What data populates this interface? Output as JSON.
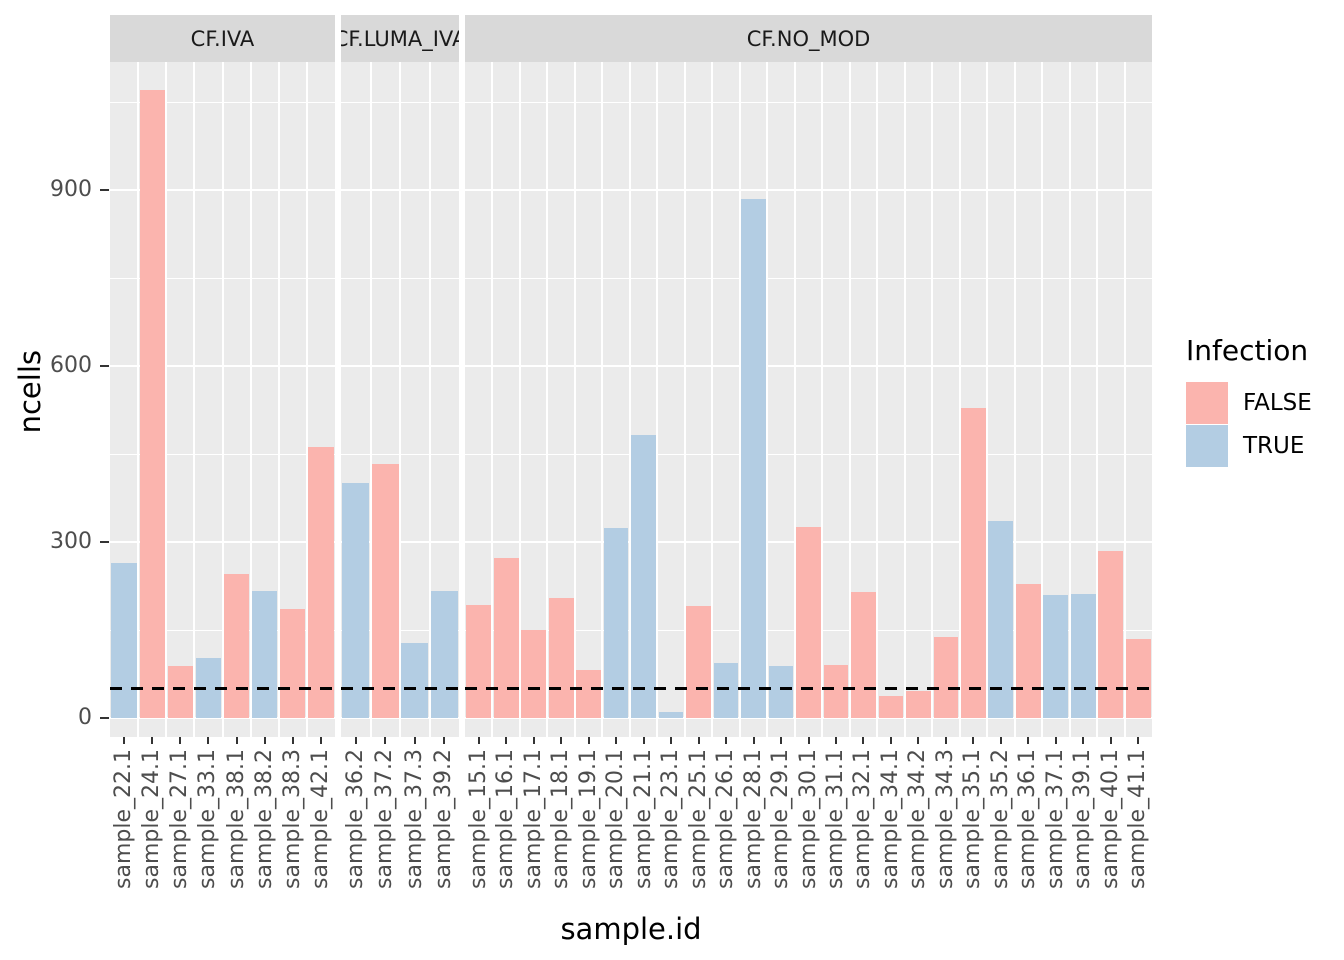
{
  "legend": {
    "title": "Infection",
    "items": [
      {
        "label": "FALSE",
        "color": "#FBB4AE"
      },
      {
        "label": "TRUE",
        "color": "#B3CDE3"
      }
    ]
  },
  "chart_data": {
    "type": "bar",
    "title": "",
    "xlabel": "sample.id",
    "ylabel": "ncells",
    "ylim": [
      0,
      1118
    ],
    "yticks": [
      0,
      300,
      600,
      900
    ],
    "grid": "white major+minor gridlines on grey panel",
    "legend_position": "right",
    "legend_title": "Infection",
    "panel_color": "#EBEBEB",
    "strip_color": "#D9D9D9",
    "reference_line": {
      "y": 50,
      "style": "dashed",
      "color": "#000000"
    },
    "series_colors": {
      "FALSE": "#FBB4AE",
      "TRUE": "#B3CDE3"
    },
    "facets": [
      {
        "label": "CF.IVA",
        "bars": [
          {
            "sample": "sample_22.1",
            "infection": "TRUE",
            "ncells": 265
          },
          {
            "sample": "sample_24.1",
            "infection": "FALSE",
            "ncells": 1070
          },
          {
            "sample": "sample_27.1",
            "infection": "FALSE",
            "ncells": 88
          },
          {
            "sample": "sample_33.1",
            "infection": "TRUE",
            "ncells": 103
          },
          {
            "sample": "sample_38.1",
            "infection": "FALSE",
            "ncells": 245
          },
          {
            "sample": "sample_38.2",
            "infection": "TRUE",
            "ncells": 216
          },
          {
            "sample": "sample_38.3",
            "infection": "FALSE",
            "ncells": 185
          },
          {
            "sample": "sample_42.1",
            "infection": "FALSE",
            "ncells": 462
          }
        ]
      },
      {
        "label": "CF.LUMA_IVA",
        "bars": [
          {
            "sample": "sample_36.2",
            "infection": "TRUE",
            "ncells": 400
          },
          {
            "sample": "sample_37.2",
            "infection": "FALSE",
            "ncells": 433
          },
          {
            "sample": "sample_37.3",
            "infection": "TRUE",
            "ncells": 127
          },
          {
            "sample": "sample_39.2",
            "infection": "TRUE",
            "ncells": 216
          }
        ]
      },
      {
        "label": "CF.NO_MOD",
        "bars": [
          {
            "sample": "sample_15.1",
            "infection": "FALSE",
            "ncells": 193
          },
          {
            "sample": "sample_16.1",
            "infection": "FALSE",
            "ncells": 272
          },
          {
            "sample": "sample_17.1",
            "infection": "FALSE",
            "ncells": 150
          },
          {
            "sample": "sample_18.1",
            "infection": "FALSE",
            "ncells": 205
          },
          {
            "sample": "sample_19.1",
            "infection": "FALSE",
            "ncells": 81
          },
          {
            "sample": "sample_20.1",
            "infection": "TRUE",
            "ncells": 324
          },
          {
            "sample": "sample_21.1",
            "infection": "TRUE",
            "ncells": 482
          },
          {
            "sample": "sample_23.1",
            "infection": "TRUE",
            "ncells": 11
          },
          {
            "sample": "sample_25.1",
            "infection": "FALSE",
            "ncells": 191
          },
          {
            "sample": "sample_26.1",
            "infection": "TRUE",
            "ncells": 93
          },
          {
            "sample": "sample_28.1",
            "infection": "TRUE",
            "ncells": 884
          },
          {
            "sample": "sample_29.1",
            "infection": "TRUE",
            "ncells": 89
          },
          {
            "sample": "sample_30.1",
            "infection": "FALSE",
            "ncells": 325
          },
          {
            "sample": "sample_31.1",
            "infection": "FALSE",
            "ncells": 91
          },
          {
            "sample": "sample_32.1",
            "infection": "FALSE",
            "ncells": 214
          },
          {
            "sample": "sample_34.1",
            "infection": "FALSE",
            "ncells": 37
          },
          {
            "sample": "sample_34.2",
            "infection": "FALSE",
            "ncells": 46
          },
          {
            "sample": "sample_34.3",
            "infection": "FALSE",
            "ncells": 138
          },
          {
            "sample": "sample_35.1",
            "infection": "FALSE",
            "ncells": 528
          },
          {
            "sample": "sample_35.2",
            "infection": "TRUE",
            "ncells": 336
          },
          {
            "sample": "sample_36.1",
            "infection": "FALSE",
            "ncells": 228
          },
          {
            "sample": "sample_37.1",
            "infection": "TRUE",
            "ncells": 209
          },
          {
            "sample": "sample_39.1",
            "infection": "TRUE",
            "ncells": 211
          },
          {
            "sample": "sample_40.1",
            "infection": "FALSE",
            "ncells": 284
          },
          {
            "sample": "sample_41.1",
            "infection": "FALSE",
            "ncells": 134
          }
        ]
      }
    ]
  }
}
